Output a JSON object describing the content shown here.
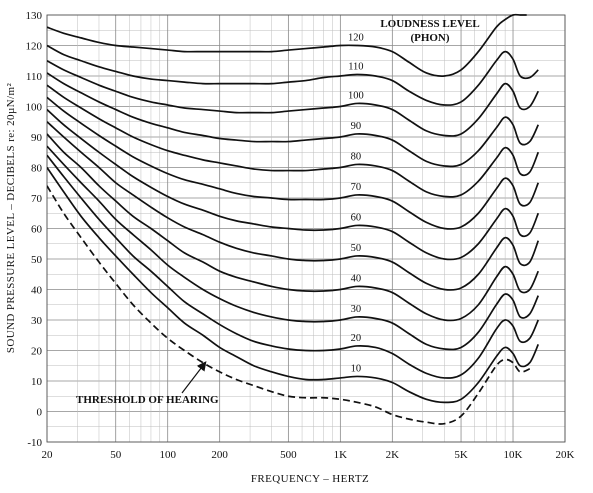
{
  "chart_data": {
    "type": "line",
    "xlabel": "FREQUENCY – HERTZ",
    "ylabel": "SOUND PRESSURE LEVEL – DECIBELS re: 20µN/m²",
    "x_scale": "log",
    "xlim": [
      20,
      20000
    ],
    "ylim": [
      -10,
      130
    ],
    "grid": true,
    "x_ticks": [
      {
        "value": 20,
        "label": "20"
      },
      {
        "value": 50,
        "label": "50"
      },
      {
        "value": 100,
        "label": "100"
      },
      {
        "value": 200,
        "label": "200"
      },
      {
        "value": 500,
        "label": "500"
      },
      {
        "value": 1000,
        "label": "1K"
      },
      {
        "value": 2000,
        "label": "2K"
      },
      {
        "value": 5000,
        "label": "5K"
      },
      {
        "value": 10000,
        "label": "10K"
      },
      {
        "value": 20000,
        "label": "20K"
      }
    ],
    "y_ticks": [
      -10,
      0,
      10,
      20,
      30,
      40,
      50,
      60,
      70,
      80,
      90,
      100,
      110,
      120,
      130
    ],
    "legend_title": [
      "LOUDNESS LEVEL",
      "(PHON)"
    ],
    "threshold_label": "THRESHOLD OF HEARING",
    "threshold": {
      "x": [
        20,
        25,
        31.5,
        40,
        50,
        63,
        80,
        100,
        125,
        160,
        200,
        250,
        315,
        400,
        500,
        630,
        800,
        1000,
        1250,
        1600,
        2000,
        2500,
        3150,
        4000,
        5000,
        6300,
        8000,
        9000,
        10000,
        11000,
        12500
      ],
      "y": [
        74,
        65,
        57,
        49,
        42,
        35,
        29,
        24,
        20,
        16,
        13,
        10.5,
        8.5,
        6.5,
        5,
        4.5,
        4.5,
        4,
        3,
        1.5,
        -1,
        -2.5,
        -3.5,
        -4,
        -1.5,
        6,
        15,
        17,
        16,
        13,
        14
      ]
    },
    "series": [
      {
        "name": "10",
        "x": [
          20,
          25,
          31.5,
          40,
          50,
          63,
          80,
          100,
          125,
          160,
          200,
          250,
          315,
          400,
          500,
          630,
          800,
          1000,
          1250,
          1600,
          2000,
          2500,
          3150,
          4000,
          5000,
          6300,
          8000,
          9000,
          10000,
          11000,
          12500,
          14000
        ],
        "y": [
          80,
          72,
          64,
          57,
          51,
          45,
          39,
          34,
          29,
          25,
          21,
          18,
          15,
          13,
          11.5,
          10.5,
          10.5,
          11,
          11.5,
          11,
          9.5,
          6.5,
          4,
          3,
          4,
          9.5,
          18,
          21,
          19,
          15,
          16,
          22
        ]
      },
      {
        "name": "20",
        "x": [
          20,
          25,
          31.5,
          40,
          50,
          63,
          80,
          100,
          125,
          160,
          200,
          250,
          315,
          400,
          500,
          630,
          800,
          1000,
          1250,
          1600,
          2000,
          2500,
          3150,
          4000,
          5000,
          6300,
          8000,
          9000,
          10000,
          11000,
          12500,
          14000
        ],
        "y": [
          84,
          77,
          70,
          63,
          57,
          51,
          46,
          41,
          36,
          32,
          28.5,
          25.5,
          23,
          21.5,
          20.5,
          20,
          20,
          20.5,
          21.5,
          21,
          19,
          15.5,
          12.5,
          11,
          12,
          17.5,
          27,
          30,
          28,
          23,
          24,
          30
        ]
      },
      {
        "name": "30",
        "x": [
          20,
          25,
          31.5,
          40,
          50,
          63,
          80,
          100,
          125,
          160,
          200,
          250,
          315,
          400,
          500,
          630,
          800,
          1000,
          1250,
          1600,
          2000,
          2500,
          3150,
          4000,
          5000,
          6300,
          8000,
          9000,
          10000,
          11000,
          12500,
          14000
        ],
        "y": [
          87,
          81,
          75,
          69,
          63,
          58,
          53,
          48,
          44,
          40,
          37,
          34.5,
          32.5,
          31,
          30,
          29.5,
          29.5,
          30,
          31,
          30.5,
          29,
          25.5,
          22,
          20.5,
          21,
          26,
          35,
          38.5,
          36.5,
          31,
          32,
          38
        ]
      },
      {
        "name": "40",
        "x": [
          20,
          25,
          31.5,
          40,
          50,
          63,
          80,
          100,
          125,
          160,
          200,
          250,
          315,
          400,
          500,
          630,
          800,
          1000,
          1250,
          1600,
          2000,
          2500,
          3150,
          4000,
          5000,
          6300,
          8000,
          9000,
          10000,
          11000,
          12500,
          14000
        ],
        "y": [
          91,
          85,
          80,
          74,
          69,
          64,
          60,
          56,
          52,
          49,
          46,
          44,
          42.5,
          41,
          40,
          39.5,
          39.5,
          40,
          41,
          40.5,
          39,
          35.5,
          32,
          30,
          30.5,
          35,
          44,
          47.5,
          45,
          39.5,
          40,
          46
        ]
      },
      {
        "name": "50",
        "x": [
          20,
          25,
          31.5,
          40,
          50,
          63,
          80,
          100,
          125,
          160,
          200,
          250,
          315,
          400,
          500,
          630,
          800,
          1000,
          1250,
          1600,
          2000,
          2500,
          3150,
          4000,
          5000,
          6300,
          8000,
          9000,
          10000,
          11000,
          12500,
          14000
        ],
        "y": [
          95,
          90,
          85,
          80,
          75,
          71,
          67,
          63.5,
          60.5,
          58,
          55.5,
          53.5,
          52,
          51,
          50,
          49.5,
          49.5,
          50,
          51,
          50.5,
          49,
          45.5,
          42,
          40,
          40.5,
          45,
          53.5,
          57,
          54.5,
          48.5,
          49,
          56
        ]
      },
      {
        "name": "60",
        "x": [
          20,
          25,
          31.5,
          40,
          50,
          63,
          80,
          100,
          125,
          160,
          200,
          250,
          315,
          400,
          500,
          630,
          800,
          1000,
          1250,
          1600,
          2000,
          2500,
          3150,
          4000,
          5000,
          6300,
          8000,
          9000,
          10000,
          11000,
          12500,
          14000
        ],
        "y": [
          99,
          94,
          89.5,
          85,
          81,
          77,
          73.5,
          70.5,
          68,
          66,
          64,
          62.5,
          61.5,
          60.5,
          60,
          59.5,
          59.5,
          60,
          61,
          60.5,
          59,
          55.5,
          52,
          50,
          50.5,
          55,
          63,
          66.5,
          64,
          58,
          58.5,
          65
        ]
      },
      {
        "name": "70",
        "x": [
          20,
          25,
          31.5,
          40,
          50,
          63,
          80,
          100,
          125,
          160,
          200,
          250,
          315,
          400,
          500,
          630,
          800,
          1000,
          1250,
          1600,
          2000,
          2500,
          3150,
          4000,
          5000,
          6300,
          8000,
          9000,
          10000,
          11000,
          12500,
          14000
        ],
        "y": [
          103,
          98.5,
          94.5,
          90.5,
          87,
          83.5,
          80.5,
          78,
          76,
          74.5,
          73,
          71.5,
          70.5,
          70,
          69.5,
          69.5,
          69.5,
          70,
          71,
          70.5,
          69,
          65.5,
          62,
          60,
          60.5,
          65,
          73,
          76.5,
          74,
          68,
          68.5,
          75
        ]
      },
      {
        "name": "80",
        "x": [
          20,
          25,
          31.5,
          40,
          50,
          63,
          80,
          100,
          125,
          160,
          200,
          250,
          315,
          400,
          500,
          630,
          800,
          1000,
          1250,
          1600,
          2000,
          2500,
          3150,
          4000,
          5000,
          6300,
          8000,
          9000,
          10000,
          11000,
          12500,
          14000
        ],
        "y": [
          107,
          103,
          99.5,
          96,
          93,
          90,
          87.5,
          85.5,
          84,
          82.5,
          81.5,
          80.5,
          79.5,
          79,
          79,
          79,
          79.5,
          80,
          81,
          80.5,
          79,
          75.5,
          72,
          70.5,
          71,
          75.5,
          83,
          86.5,
          84,
          78,
          78.5,
          85
        ]
      },
      {
        "name": "90",
        "x": [
          20,
          25,
          31.5,
          40,
          50,
          63,
          80,
          100,
          125,
          160,
          200,
          250,
          315,
          400,
          500,
          630,
          800,
          1000,
          1250,
          1600,
          2000,
          2500,
          3150,
          4000,
          5000,
          6300,
          8000,
          9000,
          10000,
          11000,
          12500,
          14000
        ],
        "y": [
          111,
          107.5,
          104.5,
          101.5,
          99,
          96.5,
          94.5,
          93,
          91.5,
          90.5,
          89.5,
          89,
          88.5,
          88.5,
          88.5,
          89,
          89.5,
          90,
          91,
          90.5,
          89,
          85.5,
          82,
          80.5,
          81,
          85.5,
          93,
          96.5,
          94,
          88,
          88.5,
          94
        ]
      },
      {
        "name": "100",
        "x": [
          20,
          25,
          31.5,
          40,
          50,
          63,
          80,
          100,
          125,
          160,
          200,
          250,
          315,
          400,
          500,
          630,
          800,
          1000,
          1250,
          1600,
          2000,
          2500,
          3150,
          4000,
          5000,
          6300,
          8000,
          9000,
          10000,
          11000,
          12500,
          14000
        ],
        "y": [
          115,
          112,
          109.5,
          107,
          105,
          103,
          101.5,
          100.5,
          99.5,
          99,
          98.5,
          98,
          98,
          98,
          98.5,
          99,
          99.5,
          100,
          101,
          100.5,
          99,
          95.5,
          92,
          90.5,
          91,
          96,
          104,
          107.5,
          105,
          99.5,
          100,
          105
        ]
      },
      {
        "name": "110",
        "x": [
          20,
          25,
          31.5,
          40,
          50,
          63,
          80,
          100,
          125,
          160,
          200,
          250,
          315,
          400,
          500,
          630,
          800,
          1000,
          1250,
          1600,
          2000,
          2500,
          3150,
          4000,
          5000,
          6300,
          8000,
          9000,
          10000,
          11000,
          12500,
          14000
        ],
        "y": [
          120,
          117,
          115,
          113,
          111.5,
          110,
          109,
          108.5,
          108,
          107.5,
          107.5,
          107.5,
          107.5,
          107.5,
          108,
          108.5,
          109.5,
          110,
          110.5,
          110,
          108.5,
          105,
          102,
          100.5,
          101.5,
          107,
          115,
          118,
          115.5,
          110,
          109.5,
          112
        ]
      },
      {
        "name": "120",
        "x": [
          20,
          25,
          31.5,
          40,
          50,
          63,
          80,
          100,
          125,
          160,
          200,
          250,
          315,
          400,
          500,
          630,
          800,
          1000,
          1250,
          1600,
          2000,
          2500,
          3150,
          4000,
          5000,
          6300,
          8000,
          9000,
          10000,
          11000,
          12000
        ],
        "y": [
          126,
          124,
          122.5,
          121,
          120,
          119.5,
          119,
          118.5,
          118,
          118,
          118,
          118,
          118,
          118,
          118.5,
          119,
          119.5,
          120,
          120,
          119.5,
          118,
          114.5,
          111,
          110,
          112,
          118,
          126,
          128.5,
          130,
          130,
          130
        ]
      }
    ]
  }
}
